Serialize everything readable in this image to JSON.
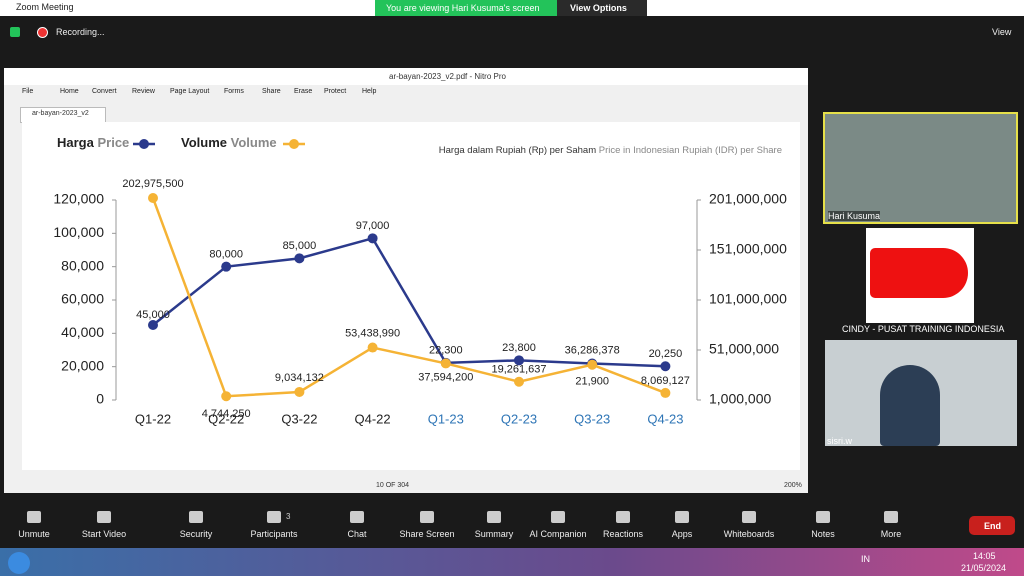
{
  "zoom": {
    "window_title": "Zoom Meeting",
    "banner": "You are viewing Hari Kusuma's screen",
    "view_options": "View Options",
    "recording": "Recording...",
    "view": "View",
    "participants": [
      "Hari Kusuma",
      "CINDY - PUSAT TRAINING INDONESIA",
      "sisri.w"
    ],
    "toolbar": [
      "Unmute",
      "Start Video",
      "Security",
      "Participants",
      "Chat",
      "Share Screen",
      "Summary",
      "AI Companion",
      "Reactions",
      "Apps",
      "Whiteboards",
      "Notes",
      "More"
    ],
    "participant_count": "3",
    "end": "End"
  },
  "nitro": {
    "title": "ar-bayan-2023_v2.pdf - Nitro Pro",
    "menu": [
      "File",
      "Home",
      "Convert",
      "Review",
      "Page Layout",
      "Forms",
      "Share",
      "Erase",
      "Protect",
      "Help"
    ],
    "tab": "ar-bayan-2023_v2",
    "page": "10 OF 304",
    "zoom": "200%"
  },
  "taskbar": {
    "lang": "IN",
    "time": "14:05",
    "date": "21/05/2024"
  },
  "chart_data": {
    "type": "line",
    "subtitle": "Harga dalam Rupiah (Rp) per Saham",
    "subtitle_translation": "Price in Indonesian Rupiah (IDR) per Share",
    "categories": [
      "Q1-22",
      "Q2-22",
      "Q3-22",
      "Q4-22",
      "Q1-23",
      "Q2-23",
      "Q3-23",
      "Q4-23"
    ],
    "category_colors": [
      "#222222",
      "#222222",
      "#222222",
      "#222222",
      "#2e75b6",
      "#2e75b6",
      "#2e75b6",
      "#2e75b6"
    ],
    "series": [
      {
        "name": "Harga",
        "name_translation": "Price",
        "color": "#2b3a8c",
        "values": [
          45000,
          80000,
          85000,
          97000,
          22300,
          23800,
          21900,
          20250
        ],
        "value_labels": [
          "45,000",
          "80,000",
          "85,000",
          "97,000",
          "22,300",
          "23,800",
          "21,900",
          "20,250"
        ]
      },
      {
        "name": "Volume",
        "name_translation": "Volume",
        "color": "#f5b335",
        "axis": "y2",
        "values": [
          202975500,
          4744250,
          9034132,
          53438990,
          37594200,
          19261637,
          36286378,
          8069127
        ],
        "value_labels": [
          "202,975,500",
          "4,744,250",
          "9,034,132",
          "53,438,990",
          "37,594,200",
          "19,261,637",
          "36,286,378",
          "8,069,127"
        ]
      }
    ],
    "ylim": [
      0,
      120000
    ],
    "yticks": [
      0,
      {
        "value": 20000,
        "label": "20,000"
      },
      {
        "value": 40000,
        "label": "40,000"
      },
      {
        "value": 60000,
        "label": "60,000"
      },
      {
        "value": 80000,
        "label": "80,000"
      },
      {
        "value": 100000,
        "label": "100,000"
      },
      {
        "value": 120000,
        "label": "120,000"
      }
    ],
    "y2lim": [
      1000000,
      201000000
    ],
    "y2ticks": [
      {
        "value": 1000000,
        "label": "1,000,000"
      },
      {
        "value": 51000000,
        "label": "51,000,000"
      },
      {
        "value": 101000000,
        "label": "101,000,000"
      },
      {
        "value": 151000000,
        "label": "151,000,000"
      },
      {
        "value": 201000000,
        "label": "201,000,000"
      }
    ]
  }
}
